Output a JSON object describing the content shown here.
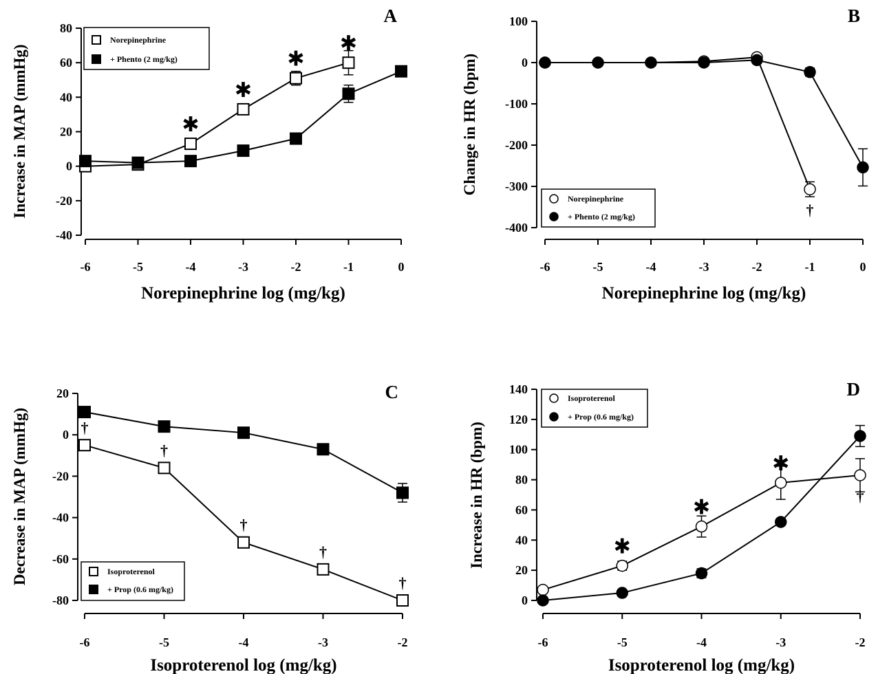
{
  "chart_data": [
    {
      "panel": "A",
      "type": "line",
      "xlabel": "Norepinephrine log (mg/kg)",
      "ylabel": "Increase in MAP (mmHg)",
      "xlim": [
        -6,
        0
      ],
      "ylim": [
        -40,
        80
      ],
      "xticks": [
        -6,
        -5,
        -4,
        -3,
        -2,
        -1,
        0
      ],
      "yticks": [
        -40,
        -20,
        0,
        20,
        40,
        60,
        80
      ],
      "legend_position": "top-left",
      "series": [
        {
          "name": "Norepinephrine",
          "marker": "square-open",
          "x": [
            -6,
            -5,
            -4,
            -3,
            -2,
            -1
          ],
          "y": [
            0,
            1,
            13,
            33,
            51,
            60
          ],
          "err": [
            0,
            0,
            2,
            2,
            4,
            7
          ]
        },
        {
          "name": "+ Phento (2 mg/kg)",
          "marker": "square-filled",
          "x": [
            -6,
            -5,
            -4,
            -3,
            -2,
            -1,
            0
          ],
          "y": [
            3,
            2,
            3,
            9,
            16,
            42,
            55
          ],
          "err": [
            0,
            0,
            0,
            0,
            0,
            5,
            2
          ]
        }
      ],
      "annotations": [
        {
          "text": "✱",
          "x": -4,
          "y": 13
        },
        {
          "text": "✱",
          "x": -3,
          "y": 33
        },
        {
          "text": "✱",
          "x": -2,
          "y": 51
        },
        {
          "text": "✱",
          "x": -1,
          "y": 60
        }
      ]
    },
    {
      "panel": "B",
      "type": "line",
      "xlabel": "Norepinephrine log (mg/kg)",
      "ylabel": "Change in HR (bpm)",
      "xlim": [
        -6,
        0
      ],
      "ylim": [
        -400,
        100
      ],
      "xticks": [
        -6,
        -5,
        -4,
        -3,
        -2,
        -1,
        0
      ],
      "yticks": [
        -400,
        -300,
        -200,
        -100,
        0,
        100
      ],
      "legend_position": "bottom-left",
      "series": [
        {
          "name": "Norepinephrine",
          "marker": "circle-open",
          "x": [
            -6,
            -5,
            -4,
            -3,
            -2,
            -1
          ],
          "y": [
            0,
            0,
            0,
            3,
            13,
            -307
          ],
          "err": [
            0,
            0,
            0,
            0,
            0,
            18
          ]
        },
        {
          "name": "+ Phento (2 mg/kg)",
          "marker": "circle-filled",
          "x": [
            -6,
            -5,
            -4,
            -3,
            -2,
            -1,
            0
          ],
          "y": [
            0,
            0,
            0,
            0,
            6,
            -23,
            -254
          ],
          "err": [
            0,
            0,
            0,
            0,
            0,
            10,
            45
          ]
        }
      ],
      "annotations": [
        {
          "text": "†",
          "x": -1,
          "y": -307
        }
      ]
    },
    {
      "panel": "C",
      "type": "line",
      "xlabel": "Isoproterenol log (mg/kg)",
      "ylabel": "Decrease in MAP (mmHg)",
      "xlim": [
        -6,
        -2
      ],
      "ylim": [
        -80,
        20
      ],
      "xticks": [
        -6,
        -5,
        -4,
        -3,
        -2
      ],
      "yticks": [
        -80,
        -60,
        -40,
        -20,
        0,
        20
      ],
      "legend_position": "bottom-left",
      "series": [
        {
          "name": "Isoproterenol",
          "marker": "square-open",
          "x": [
            -6,
            -5,
            -4,
            -3,
            -2
          ],
          "y": [
            -5,
            -16,
            -52,
            -65,
            -80
          ],
          "err": [
            0,
            0,
            0,
            0,
            0
          ]
        },
        {
          "name": "+ Prop (0.6 mg/kg)",
          "marker": "square-filled",
          "x": [
            -6,
            -5,
            -4,
            -3,
            -2
          ],
          "y": [
            11,
            4,
            1,
            -7,
            -28
          ],
          "err": [
            0,
            0,
            0,
            0,
            4.5
          ]
        }
      ],
      "annotations": [
        {
          "text": "†",
          "x": -6,
          "y": -5
        },
        {
          "text": "†",
          "x": -5,
          "y": -16
        },
        {
          "text": "†",
          "x": -4,
          "y": -52
        },
        {
          "text": "†",
          "x": -3,
          "y": -65
        },
        {
          "text": "†",
          "x": -2,
          "y": -80
        }
      ]
    },
    {
      "panel": "D",
      "type": "line",
      "xlabel": "Isoproterenol log (mg/kg)",
      "ylabel": "Increase in HR (bpm)",
      "xlim": [
        -6,
        -2
      ],
      "ylim": [
        0,
        140
      ],
      "xticks": [
        -6,
        -5,
        -4,
        -3,
        -2
      ],
      "yticks": [
        0,
        20,
        40,
        60,
        80,
        100,
        120,
        140
      ],
      "legend_position": "top-left",
      "series": [
        {
          "name": "Isoproterenol",
          "marker": "circle-open",
          "x": [
            -6,
            -5,
            -4,
            -3,
            -2
          ],
          "y": [
            7,
            23,
            49,
            78,
            83
          ],
          "err": [
            0,
            3,
            7,
            11,
            11
          ]
        },
        {
          "name": "+ Prop (0.6 mg/kg)",
          "marker": "circle-filled",
          "x": [
            -6,
            -5,
            -4,
            -3,
            -2
          ],
          "y": [
            0,
            5,
            18,
            52,
            109
          ],
          "err": [
            0,
            0,
            3,
            2,
            7
          ]
        }
      ],
      "annotations": [
        {
          "text": "✱",
          "x": -5,
          "y": 23
        },
        {
          "text": "✱",
          "x": -4,
          "y": 49
        },
        {
          "text": "✱",
          "x": -3,
          "y": 78
        },
        {
          "text": "†",
          "x": -2,
          "y": 83
        }
      ]
    }
  ]
}
